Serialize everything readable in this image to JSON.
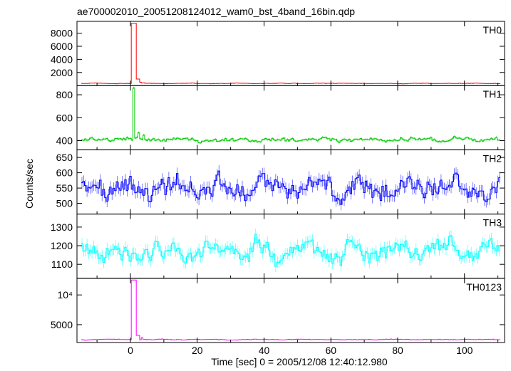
{
  "title": "ae700002010_20051208124012_wam0_bst_4band_16bin.qdp",
  "ylabel": "Counts/sec",
  "xlabel": "Time [sec] 0 = 2005/12/08 12:40:12.980",
  "chart_data": {
    "type": "line",
    "xlim": [
      -16,
      112
    ],
    "x_ticks": [
      0,
      20,
      40,
      60,
      80,
      100
    ],
    "bin_sec": 0.5,
    "panels": [
      {
        "name": "TH0",
        "color": "#ff0000",
        "ylim": [
          0,
          9800
        ],
        "y_ticks": [
          2000,
          4000,
          6000,
          8000
        ],
        "y_tick_labels": [
          "2000",
          "4000",
          "6000",
          "8000"
        ],
        "baseline": 330,
        "noise": 40,
        "peak": {
          "t": 1.0,
          "value": 9500,
          "width": 1.0
        },
        "tail": [
          {
            "t": 2.2,
            "value": 1000
          },
          {
            "t": 3.0,
            "value": 520
          },
          {
            "t": 4.0,
            "value": 420
          }
        ]
      },
      {
        "name": "TH1",
        "color": "#00cc00",
        "ylim": [
          320,
          880
        ],
        "y_ticks": [
          400,
          600,
          800
        ],
        "y_tick_labels": [
          "400",
          "600",
          "800"
        ],
        "baseline": 410,
        "noise": 18,
        "peak": {
          "t": 1.0,
          "value": 860,
          "width": 0.6
        },
        "tail": [
          {
            "t": 2.5,
            "value": 470
          },
          {
            "t": 4.0,
            "value": 450
          }
        ]
      },
      {
        "name": "TH2",
        "color": "#0000ff",
        "ylim": [
          465,
          675
        ],
        "y_ticks": [
          500,
          550,
          600,
          650
        ],
        "y_tick_labels": [
          "500",
          "550",
          "600",
          "650"
        ],
        "baseline": 550,
        "noise": 35
      },
      {
        "name": "TH3",
        "color": "#00ffff",
        "ylim": [
          1025,
          1370
        ],
        "y_ticks": [
          1100,
          1200,
          1300
        ],
        "y_tick_labels": [
          "1100",
          "1200",
          "1300"
        ],
        "baseline": 1170,
        "noise": 55
      },
      {
        "name": "TH0123",
        "color": "#ff00ff",
        "ylim": [
          2000,
          12800
        ],
        "y_ticks": [
          5000,
          10000
        ],
        "y_tick_labels": [
          "5000",
          "10⁴"
        ],
        "baseline": 2500,
        "noise": 60,
        "peak": {
          "t": 1.0,
          "value": 12500,
          "width": 1.0
        },
        "tail": [
          {
            "t": 2.2,
            "value": 3200
          },
          {
            "t": 3.5,
            "value": 2800
          }
        ]
      }
    ]
  }
}
